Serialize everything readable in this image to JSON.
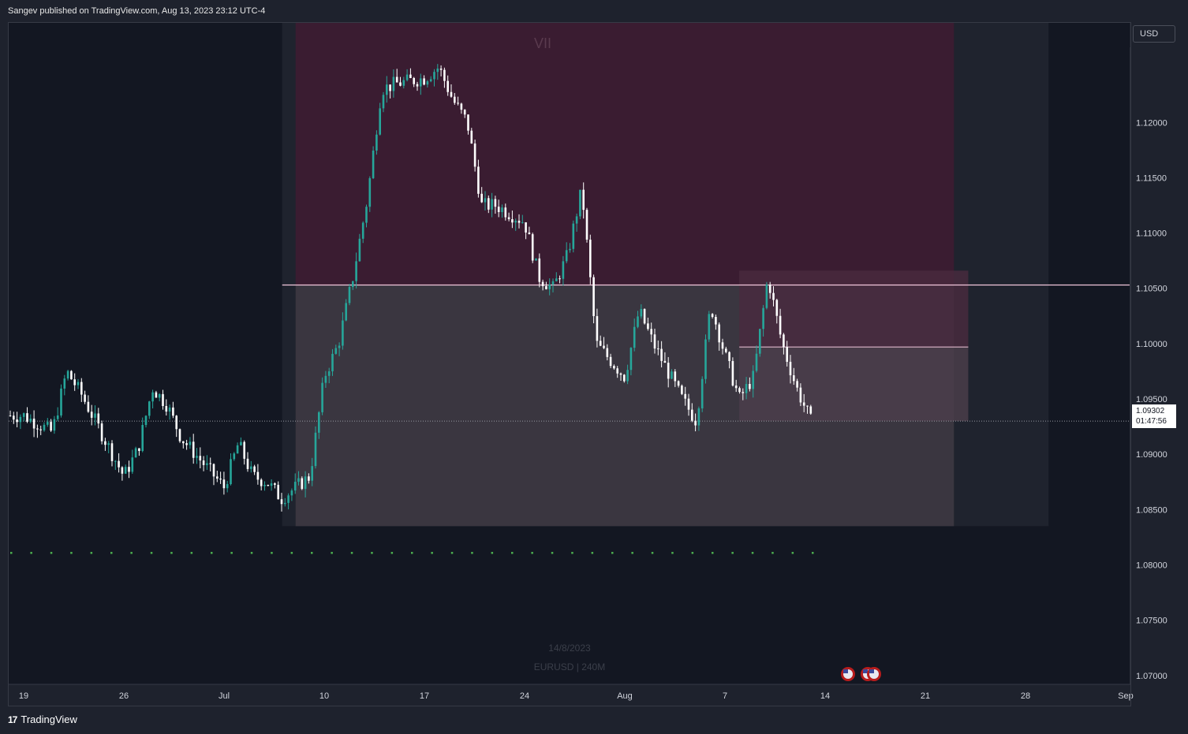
{
  "header": {
    "published": "Sangev published on TradingView.com, Aug 13, 2023 23:12 UTC-4"
  },
  "footer": {
    "brand": "TradingView"
  },
  "axis": {
    "currency_button": "USD"
  },
  "last_price": {
    "price": "1.09302",
    "countdown": "01:47:56"
  },
  "watermark": {
    "date": "14/8/2023",
    "symbol": "EURUSD | 240M"
  },
  "zone_label": "VII",
  "colors": {
    "up": "#26a69a",
    "down": "#ffffff",
    "supply_zone": "#3a1c31",
    "demand_zone": "#3a3640",
    "line": "#f2c8dc",
    "dots": "#4caf50",
    "flag": "#b71c1c"
  },
  "icons": [
    "us-flag-icon",
    "us-flag-icon",
    "us-flag-icon"
  ],
  "chart_data": {
    "type": "candlestick",
    "title": "",
    "ylim": [
      1.0692,
      1.129
    ],
    "y_ticks": [
      "1.12000",
      "1.11500",
      "1.11000",
      "1.10500",
      "1.10000",
      "1.09500",
      "1.09000",
      "1.08500",
      "1.08000",
      "1.07500",
      "1.07000"
    ],
    "x_ticks": [
      "19",
      "26",
      "Jul",
      "10",
      "17",
      "24",
      "Aug",
      "7",
      "14",
      "21",
      "28",
      "Sep"
    ],
    "grid": false,
    "close_path": [
      [
        "Jun 19",
        1.0935
      ],
      [
        "Jun 21",
        1.092
      ],
      [
        "Jun 22",
        1.0975
      ],
      [
        "Jun 23",
        1.0955
      ],
      [
        "Jun 26",
        1.088
      ],
      [
        "Jun 27",
        1.0905
      ],
      [
        "Jun 28",
        1.096
      ],
      [
        "Jun 29",
        1.0945
      ],
      [
        "Jun 30",
        1.0915
      ],
      [
        "Jul 3",
        1.087
      ],
      [
        "Jul 4",
        1.091
      ],
      [
        "Jul 5",
        1.088
      ],
      [
        "Jul 6",
        1.0875
      ],
      [
        "Jul 7",
        1.086
      ],
      [
        "Jul 8",
        1.087
      ],
      [
        "Jul 9",
        1.088
      ],
      [
        "Jul 10",
        1.097
      ],
      [
        "Jul 11",
        1.1
      ],
      [
        "Jul 12",
        1.106
      ],
      [
        "Jul 13",
        1.113
      ],
      [
        "Jul 14",
        1.123
      ],
      [
        "Jul 15",
        1.1235
      ],
      [
        "Jul 17",
        1.124
      ],
      [
        "Jul 18",
        1.125
      ],
      [
        "Jul 19",
        1.122
      ],
      [
        "Jul 20",
        1.12
      ],
      [
        "Jul 21",
        1.1125
      ],
      [
        "Jul 22",
        1.1125
      ],
      [
        "Jul 24",
        1.111
      ],
      [
        "Jul 25",
        1.106
      ],
      [
        "Jul 26",
        1.105
      ],
      [
        "Jul 27",
        1.108
      ],
      [
        "Jul 28",
        1.114
      ],
      [
        "Jul 29",
        1.1
      ],
      [
        "Jul 31",
        1.097
      ],
      [
        "Aug 1",
        1.103
      ],
      [
        "Aug 2",
        1.1
      ],
      [
        "Aug 3",
        1.0975
      ],
      [
        "Aug 4",
        1.095
      ],
      [
        "Aug 5",
        1.093
      ],
      [
        "Aug 6",
        1.1035
      ],
      [
        "Aug 7",
        1.099
      ],
      [
        "Aug 8",
        1.095
      ],
      [
        "Aug 9",
        1.097
      ],
      [
        "Aug 10",
        1.106
      ],
      [
        "Aug 11",
        1.1
      ],
      [
        "Aug 12",
        1.096
      ],
      [
        "Aug 13",
        1.093
      ]
    ],
    "zones": [
      {
        "name": "supply-zone",
        "label": "VII",
        "from": "Jul 8",
        "to": "Aug 23",
        "top": 1.129,
        "bottom": 1.1053
      },
      {
        "name": "demand-zone",
        "from": "Jul 8",
        "to": "Aug 23",
        "top": 1.1053,
        "bottom": 1.0835
      }
    ],
    "horizontal_lines": [
      {
        "name": "zone-boundary-line",
        "price": 1.1053
      },
      {
        "name": "mid-level-line",
        "price": 1.0997
      },
      {
        "name": "last-price-line",
        "price": 1.093
      },
      {
        "name": "target-dots-line",
        "price": 1.0811
      }
    ]
  }
}
